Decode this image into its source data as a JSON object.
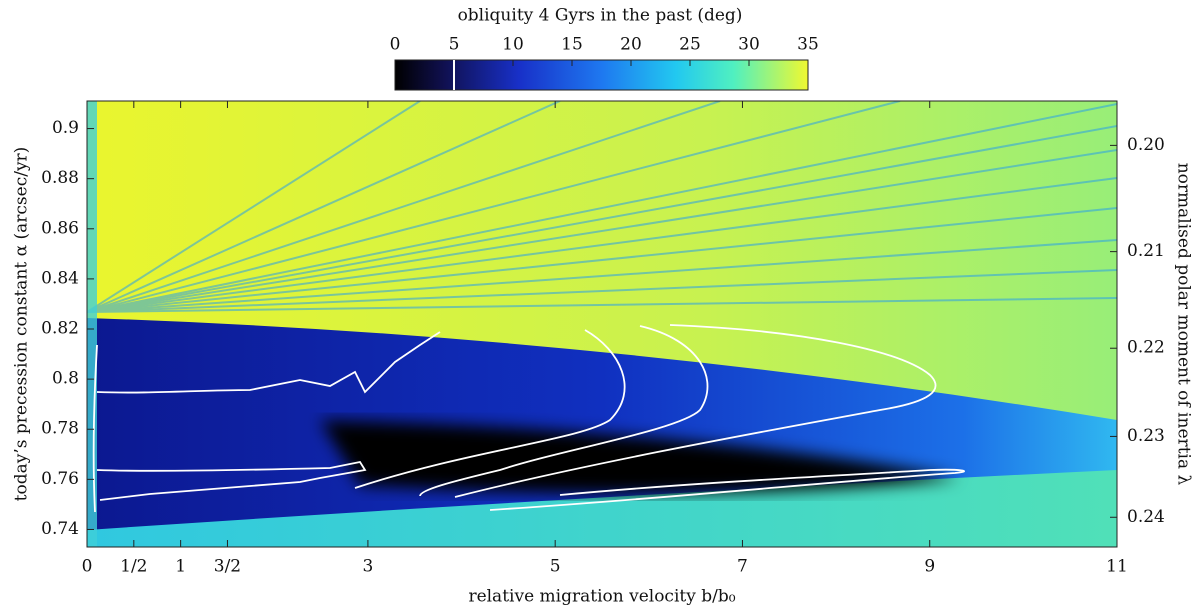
{
  "chart_data": {
    "type": "heatmap",
    "title": "obliquity 4 Gyrs in the past (deg)",
    "xlabel": "relative migration velocity b/b₀",
    "ylabel": "today’s precession constant α (arcsec/yr)",
    "y2label": "normalised polar moment of inertia λ",
    "xlim": [
      0,
      11
    ],
    "xticks": [
      0,
      {
        "value": 0.5,
        "label": "1/2"
      },
      1,
      {
        "value": 1.5,
        "label": "3/2"
      },
      3,
      5,
      7,
      9,
      11
    ],
    "ylim": [
      0.733,
      0.911
    ],
    "yticks": [
      0.74,
      0.76,
      0.78,
      0.8,
      0.82,
      0.84,
      0.86,
      0.88,
      0.9
    ],
    "y2lim": [
      0.1961,
      0.2439
    ],
    "y2scale": "reciprocal",
    "y2ticks": [
      {
        "value": 0.2,
        "label": "0.20"
      },
      {
        "value": 0.21,
        "label": "0.21"
      },
      {
        "value": 0.22,
        "label": "0.22"
      },
      {
        "value": 0.23,
        "label": "0.23"
      },
      {
        "value": 0.24,
        "label": "0.24"
      }
    ],
    "colorbar": {
      "lim": [
        0,
        35
      ],
      "ticks": [
        0,
        5,
        10,
        15,
        20,
        25,
        30,
        35
      ],
      "contour_level": 5
    }
  }
}
